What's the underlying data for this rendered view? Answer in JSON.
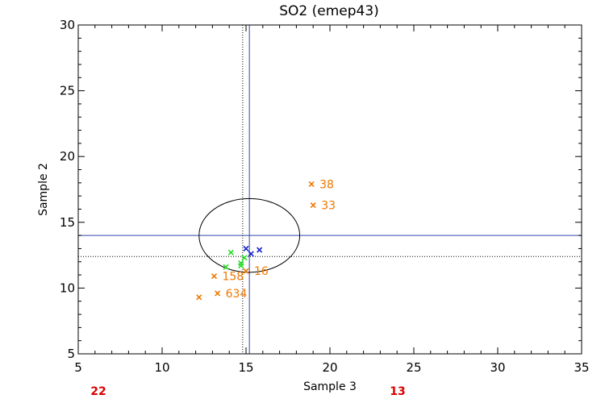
{
  "chart_data": {
    "type": "scatter",
    "title": "SO2 (emep43)",
    "xlabel": "Sample 3",
    "ylabel": "Sample 2",
    "xlim": [
      5,
      35
    ],
    "ylim": [
      5,
      30
    ],
    "x_ticks": [
      5,
      10,
      15,
      20,
      25,
      30,
      35
    ],
    "y_ticks": [
      5,
      10,
      15,
      20,
      25,
      30
    ],
    "grid": false,
    "reference_lines": [
      {
        "orientation": "vertical",
        "value": 15.2,
        "style": "solid",
        "color": "#3344aa"
      },
      {
        "orientation": "horizontal",
        "value": 14.0,
        "style": "solid",
        "color": "#3344aa"
      },
      {
        "orientation": "vertical",
        "value": 14.8,
        "style": "dotted",
        "color": "#000000"
      },
      {
        "orientation": "horizontal",
        "value": 12.4,
        "style": "dotted",
        "color": "#000000"
      }
    ],
    "ellipse": {
      "center": [
        15.2,
        14.0
      ],
      "half_width": 3.0,
      "half_height": 2.8,
      "color": "#000000"
    },
    "series": [
      {
        "name": "orange",
        "color": "#ee7700",
        "points": [
          {
            "x": 18.9,
            "y": 17.9,
            "label": "38"
          },
          {
            "x": 19.0,
            "y": 16.3,
            "label": "33"
          },
          {
            "x": 15.0,
            "y": 11.3,
            "label": "16"
          },
          {
            "x": 13.1,
            "y": 10.9,
            "label": "158"
          },
          {
            "x": 13.3,
            "y": 9.6,
            "label": "634"
          },
          {
            "x": 12.2,
            "y": 9.3,
            "label": ""
          }
        ]
      },
      {
        "name": "green",
        "color": "#22dd22",
        "points": [
          {
            "x": 14.1,
            "y": 12.7
          },
          {
            "x": 14.9,
            "y": 12.3
          },
          {
            "x": 14.7,
            "y": 11.9
          },
          {
            "x": 14.7,
            "y": 11.7
          },
          {
            "x": 13.8,
            "y": 11.6
          }
        ]
      },
      {
        "name": "blue",
        "color": "#1122cc",
        "points": [
          {
            "x": 15.0,
            "y": 13.0
          },
          {
            "x": 15.8,
            "y": 12.9
          },
          {
            "x": 15.3,
            "y": 12.6
          }
        ]
      }
    ],
    "corner_counts": [
      {
        "label": "22",
        "position": "bottom-left",
        "color": "#dd0000"
      },
      {
        "label": "13",
        "position": "bottom-right",
        "color": "#dd0000"
      }
    ]
  }
}
